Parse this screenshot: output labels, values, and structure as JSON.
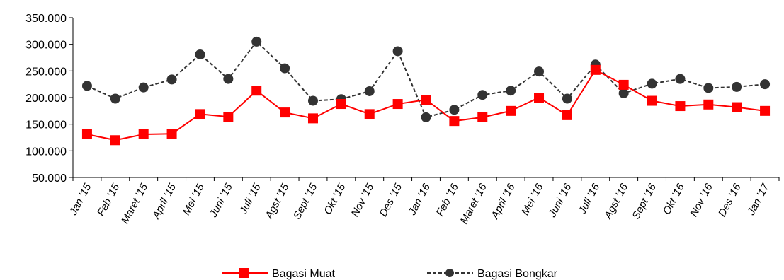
{
  "chart_data": {
    "type": "line",
    "title": "",
    "xlabel": "",
    "ylabel": "",
    "categories": [
      "Jan '15",
      "Feb '15",
      "Maret '15",
      "April '15",
      "Mei '15",
      "Juni '15",
      "Juli '15",
      "Agst '15",
      "Sept '15",
      "Okt '15",
      "Nov '15",
      "Des '15",
      "Jan '16",
      "Feb '16",
      "Maret '16",
      "April '16",
      "Mei '16",
      "Juni '16",
      "Juli '16",
      "Agst '16",
      "Sept '16",
      "Okt '16",
      "Nov '16",
      "Des '16",
      "Jan '17"
    ],
    "ylim": [
      50000,
      350000
    ],
    "yticks": [
      50000,
      100000,
      150000,
      200000,
      250000,
      300000,
      350000
    ],
    "ytick_labels": [
      "50.000",
      "100.000",
      "150.000",
      "200.000",
      "250.000",
      "300.000",
      "350.000"
    ],
    "grid": false,
    "legend_position": "bottom",
    "series": [
      {
        "name": "Bagasi Muat",
        "color": "#ff0000",
        "marker": "square",
        "line_style": "solid",
        "values": [
          131000,
          120000,
          131000,
          132000,
          169000,
          164000,
          213000,
          172000,
          161000,
          188000,
          169000,
          188000,
          196000,
          156000,
          163000,
          175000,
          200000,
          167000,
          252000,
          224000,
          194000,
          184000,
          187000,
          182000,
          175000
        ]
      },
      {
        "name": "Bagasi Bongkar",
        "color": "#333333",
        "marker": "circle",
        "line_style": "dashed",
        "values": [
          222000,
          198000,
          219000,
          234000,
          281000,
          235000,
          305000,
          255000,
          194000,
          197000,
          212000,
          287000,
          163000,
          177000,
          205000,
          213000,
          249000,
          198000,
          262000,
          208000,
          226000,
          235000,
          218000,
          220000,
          225000
        ]
      }
    ]
  }
}
